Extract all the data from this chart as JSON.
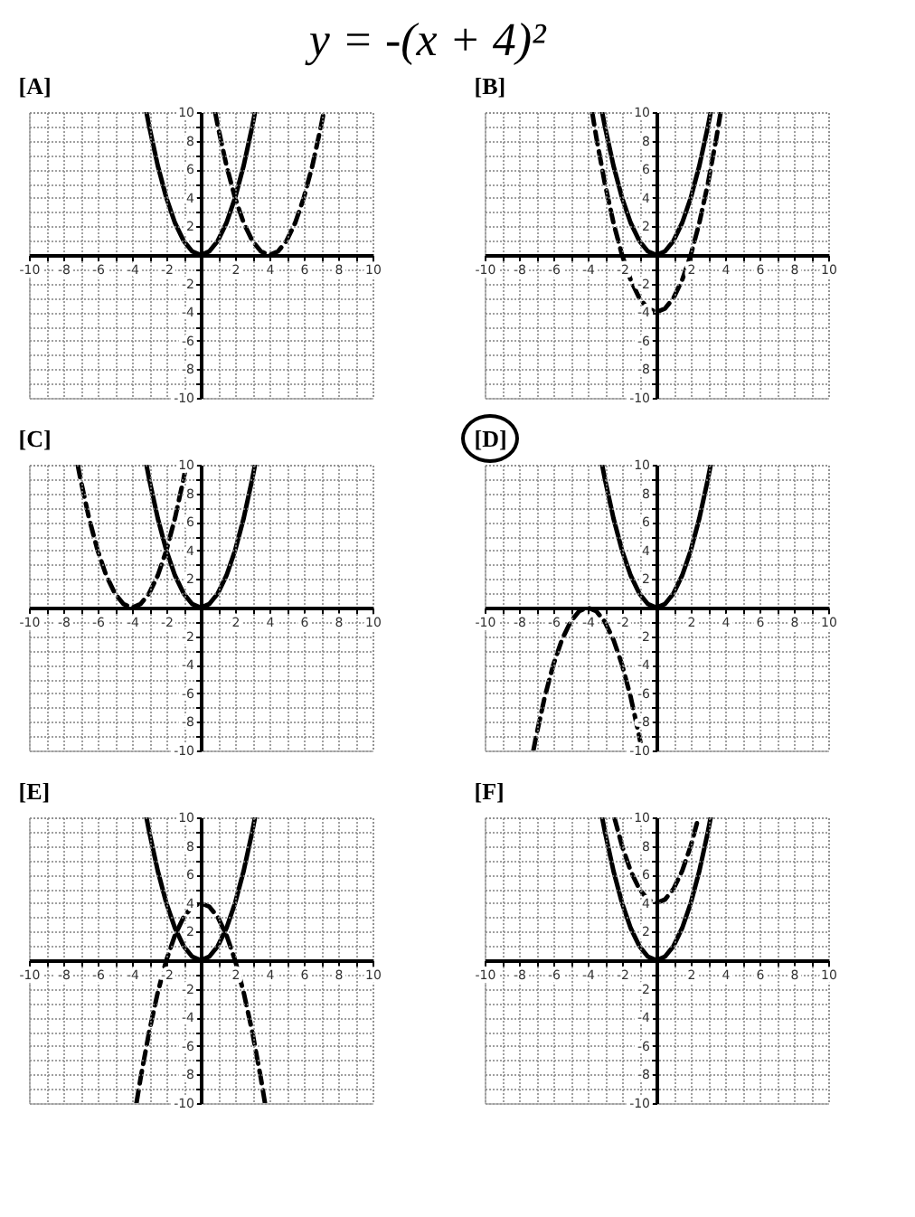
{
  "chart_data": [
    {
      "type": "other",
      "title": "y = -(x + 4)²"
    },
    {
      "type": "line",
      "title": "[A]",
      "xlim": [
        -10,
        10
      ],
      "ylim": [
        -10,
        10
      ],
      "grid": true,
      "xticks": [
        -10,
        {
          "value": -9,
          "label": null
        },
        -8,
        {
          "value": -7,
          "label": null
        },
        -6,
        {
          "value": -5,
          "label": null
        },
        -4,
        {
          "value": -3,
          "label": null
        },
        -2,
        {
          "value": -1,
          "label": null
        },
        {
          "value": 0,
          "label": null
        },
        {
          "value": 1,
          "label": null
        },
        2,
        {
          "value": 3,
          "label": null
        },
        4,
        {
          "value": 5,
          "label": null
        },
        6,
        {
          "value": 7,
          "label": null
        },
        8,
        {
          "value": 9,
          "label": null
        },
        10
      ],
      "yticks": [
        -10,
        {
          "value": -9,
          "label": null
        },
        -8,
        {
          "value": -7,
          "label": null
        },
        -6,
        {
          "value": -5,
          "label": null
        },
        -4,
        {
          "value": -3,
          "label": null
        },
        -2,
        {
          "value": -1,
          "label": null
        },
        {
          "value": 0,
          "label": null
        },
        {
          "value": 1,
          "label": null
        },
        2,
        {
          "value": 3,
          "label": null
        },
        4,
        {
          "value": 5,
          "label": null
        },
        6,
        {
          "value": 7,
          "label": null
        },
        8,
        {
          "value": 9,
          "label": null
        },
        10
      ],
      "series": [
        {
          "color": "#000000",
          "line_style": "solid",
          "x": [
            -3.16,
            -3,
            -2.5,
            -2,
            -1.5,
            -1,
            -0.5,
            0,
            0.5,
            1,
            1.5,
            2,
            2.5,
            3,
            3.16
          ],
          "values": [
            10,
            9,
            6.25,
            4,
            2.25,
            1,
            0.25,
            0,
            0.25,
            1,
            2.25,
            4,
            6.25,
            9,
            10
          ]
        },
        {
          "color": "#000000",
          "line_style": "dashed",
          "x": [
            0.84,
            1,
            1.5,
            2,
            2.5,
            3,
            3.5,
            4,
            4.5,
            5,
            5.5,
            6,
            6.5,
            7,
            7.16
          ],
          "values": [
            10,
            9,
            6.25,
            4,
            2.25,
            1,
            0.25,
            0,
            0.25,
            1,
            2.25,
            4,
            6.25,
            9,
            10
          ]
        }
      ]
    },
    {
      "type": "line",
      "title": "[B]",
      "xlim": [
        -10,
        10
      ],
      "ylim": [
        -10,
        10
      ],
      "grid": true,
      "xticks": [
        -10,
        {
          "value": -9,
          "label": null
        },
        -8,
        {
          "value": -7,
          "label": null
        },
        -6,
        {
          "value": -5,
          "label": null
        },
        -4,
        {
          "value": -3,
          "label": null
        },
        -2,
        {
          "value": -1,
          "label": null
        },
        {
          "value": 0,
          "label": null
        },
        {
          "value": 1,
          "label": null
        },
        2,
        {
          "value": 3,
          "label": null
        },
        4,
        {
          "value": 5,
          "label": null
        },
        6,
        {
          "value": 7,
          "label": null
        },
        8,
        {
          "value": 9,
          "label": null
        },
        10
      ],
      "yticks": [
        -10,
        {
          "value": -9,
          "label": null
        },
        -8,
        {
          "value": -7,
          "label": null
        },
        -6,
        {
          "value": -5,
          "label": null
        },
        -4,
        {
          "value": -3,
          "label": null
        },
        -2,
        {
          "value": -1,
          "label": null
        },
        {
          "value": 0,
          "label": null
        },
        {
          "value": 1,
          "label": null
        },
        2,
        {
          "value": 3,
          "label": null
        },
        4,
        {
          "value": 5,
          "label": null
        },
        6,
        {
          "value": 7,
          "label": null
        },
        8,
        {
          "value": 9,
          "label": null
        },
        10
      ],
      "series": [
        {
          "color": "#000000",
          "line_style": "solid",
          "x": [
            -3.16,
            -3,
            -2.5,
            -2,
            -1.5,
            -1,
            -0.5,
            0,
            0.5,
            1,
            1.5,
            2,
            2.5,
            3,
            3.16
          ],
          "values": [
            10,
            9,
            6.25,
            4,
            2.25,
            1,
            0.25,
            0,
            0.25,
            1,
            2.25,
            4,
            6.25,
            9,
            10
          ]
        },
        {
          "color": "#000000",
          "line_style": "dashed",
          "x": [
            -3.74,
            -3.5,
            -3,
            -2.5,
            -2,
            -1.5,
            -1,
            -0.5,
            0,
            0.5,
            1,
            1.5,
            2,
            2.5,
            3,
            3.5,
            3.74
          ],
          "values": [
            10,
            8.25,
            5,
            2.25,
            0,
            -1.75,
            -3,
            -3.75,
            -4,
            -3.75,
            -3,
            -1.75,
            0,
            2.25,
            5,
            8.25,
            10
          ]
        }
      ]
    },
    {
      "type": "line",
      "title": "[C]",
      "xlim": [
        -10,
        10
      ],
      "ylim": [
        -10,
        10
      ],
      "grid": true,
      "xticks": [
        -10,
        {
          "value": -9,
          "label": null
        },
        -8,
        {
          "value": -7,
          "label": null
        },
        -6,
        {
          "value": -5,
          "label": null
        },
        -4,
        {
          "value": -3,
          "label": null
        },
        -2,
        {
          "value": -1,
          "label": null
        },
        {
          "value": 0,
          "label": null
        },
        {
          "value": 1,
          "label": null
        },
        2,
        {
          "value": 3,
          "label": null
        },
        4,
        {
          "value": 5,
          "label": null
        },
        6,
        {
          "value": 7,
          "label": null
        },
        8,
        {
          "value": 9,
          "label": null
        },
        10
      ],
      "yticks": [
        -10,
        {
          "value": -9,
          "label": null
        },
        -8,
        {
          "value": -7,
          "label": null
        },
        -6,
        {
          "value": -5,
          "label": null
        },
        -4,
        {
          "value": -3,
          "label": null
        },
        -2,
        {
          "value": -1,
          "label": null
        },
        {
          "value": 0,
          "label": null
        },
        {
          "value": 1,
          "label": null
        },
        2,
        {
          "value": 3,
          "label": null
        },
        4,
        {
          "value": 5,
          "label": null
        },
        6,
        {
          "value": 7,
          "label": null
        },
        8,
        {
          "value": 9,
          "label": null
        },
        10
      ],
      "series": [
        {
          "color": "#000000",
          "line_style": "solid",
          "x": [
            -3.16,
            -3,
            -2.5,
            -2,
            -1.5,
            -1,
            -0.5,
            0,
            0.5,
            1,
            1.5,
            2,
            2.5,
            3,
            3.16
          ],
          "values": [
            10,
            9,
            6.25,
            4,
            2.25,
            1,
            0.25,
            0,
            0.25,
            1,
            2.25,
            4,
            6.25,
            9,
            10
          ]
        },
        {
          "color": "#000000",
          "line_style": "dashed",
          "x": [
            -7.16,
            -7,
            -6.5,
            -6,
            -5.5,
            -5,
            -4.5,
            -4,
            -3.5,
            -3,
            -2.5,
            -2,
            -1.5,
            -1,
            -0.84
          ],
          "values": [
            10,
            9,
            6.25,
            4,
            2.25,
            1,
            0.25,
            0,
            0.25,
            1,
            2.25,
            4,
            6.25,
            9,
            10
          ]
        }
      ]
    },
    {
      "type": "line",
      "title": "[D]",
      "xlim": [
        -10,
        10
      ],
      "ylim": [
        -10,
        10
      ],
      "grid": true,
      "xticks": [
        -10,
        {
          "value": -9,
          "label": null
        },
        -8,
        {
          "value": -7,
          "label": null
        },
        -6,
        {
          "value": -5,
          "label": null
        },
        -4,
        {
          "value": -3,
          "label": null
        },
        -2,
        {
          "value": -1,
          "label": null
        },
        {
          "value": 0,
          "label": null
        },
        {
          "value": 1,
          "label": null
        },
        2,
        {
          "value": 3,
          "label": null
        },
        4,
        {
          "value": 5,
          "label": null
        },
        6,
        {
          "value": 7,
          "label": null
        },
        8,
        {
          "value": 9,
          "label": null
        },
        10
      ],
      "yticks": [
        -10,
        {
          "value": -9,
          "label": null
        },
        -8,
        {
          "value": -7,
          "label": null
        },
        -6,
        {
          "value": -5,
          "label": null
        },
        -4,
        {
          "value": -3,
          "label": null
        },
        -2,
        {
          "value": -1,
          "label": null
        },
        {
          "value": 0,
          "label": null
        },
        {
          "value": 1,
          "label": null
        },
        2,
        {
          "value": 3,
          "label": null
        },
        4,
        {
          "value": 5,
          "label": null
        },
        6,
        {
          "value": 7,
          "label": null
        },
        8,
        {
          "value": 9,
          "label": null
        },
        10
      ],
      "series": [
        {
          "color": "#000000",
          "line_style": "solid",
          "x": [
            -3.16,
            -3,
            -2.5,
            -2,
            -1.5,
            -1,
            -0.5,
            0,
            0.5,
            1,
            1.5,
            2,
            2.5,
            3,
            3.16
          ],
          "values": [
            10,
            9,
            6.25,
            4,
            2.25,
            1,
            0.25,
            0,
            0.25,
            1,
            2.25,
            4,
            6.25,
            9,
            10
          ]
        },
        {
          "color": "#000000",
          "line_style": "dashed",
          "x": [
            -7.16,
            -7,
            -6.5,
            -6,
            -5.5,
            -5,
            -4.5,
            -4,
            -3.5,
            -3,
            -2.5,
            -2,
            -1.5,
            -1,
            -0.84
          ],
          "values": [
            -10,
            -9,
            -6.25,
            -4,
            -2.25,
            -1,
            -0.25,
            0,
            -0.25,
            -1,
            -2.25,
            -4,
            -6.25,
            -9,
            -10
          ]
        }
      ]
    },
    {
      "type": "line",
      "title": "[E]",
      "xlim": [
        -10,
        10
      ],
      "ylim": [
        -10,
        10
      ],
      "grid": true,
      "xticks": [
        -10,
        {
          "value": -9,
          "label": null
        },
        -8,
        {
          "value": -7,
          "label": null
        },
        -6,
        {
          "value": -5,
          "label": null
        },
        -4,
        {
          "value": -3,
          "label": null
        },
        -2,
        {
          "value": -1,
          "label": null
        },
        {
          "value": 0,
          "label": null
        },
        {
          "value": 1,
          "label": null
        },
        2,
        {
          "value": 3,
          "label": null
        },
        4,
        {
          "value": 5,
          "label": null
        },
        6,
        {
          "value": 7,
          "label": null
        },
        8,
        {
          "value": 9,
          "label": null
        },
        10
      ],
      "yticks": [
        -10,
        {
          "value": -9,
          "label": null
        },
        -8,
        {
          "value": -7,
          "label": null
        },
        -6,
        {
          "value": -5,
          "label": null
        },
        -4,
        {
          "value": -3,
          "label": null
        },
        -2,
        {
          "value": -1,
          "label": null
        },
        {
          "value": 0,
          "label": null
        },
        {
          "value": 1,
          "label": null
        },
        2,
        {
          "value": 3,
          "label": null
        },
        4,
        {
          "value": 5,
          "label": null
        },
        6,
        {
          "value": 7,
          "label": null
        },
        8,
        {
          "value": 9,
          "label": null
        },
        10
      ],
      "series": [
        {
          "color": "#000000",
          "line_style": "solid",
          "x": [
            -3.16,
            -3,
            -2.5,
            -2,
            -1.5,
            -1,
            -0.5,
            0,
            0.5,
            1,
            1.5,
            2,
            2.5,
            3,
            3.16
          ],
          "values": [
            10,
            9,
            6.25,
            4,
            2.25,
            1,
            0.25,
            0,
            0.25,
            1,
            2.25,
            4,
            6.25,
            9,
            10
          ]
        },
        {
          "color": "#000000",
          "line_style": "dashed",
          "x": [
            -3.74,
            -3.5,
            -3,
            -2.5,
            -2,
            -1.5,
            -1,
            -0.5,
            0,
            0.5,
            1,
            1.5,
            2,
            2.5,
            3,
            3.5,
            3.74
          ],
          "values": [
            -10,
            -8.25,
            -5,
            -2.25,
            0,
            1.75,
            3,
            3.75,
            4,
            3.75,
            3,
            1.75,
            0,
            -2.25,
            -5,
            -8.25,
            -10
          ]
        }
      ]
    },
    {
      "type": "line",
      "title": "[F]",
      "xlim": [
        -10,
        10
      ],
      "ylim": [
        -10,
        10
      ],
      "grid": true,
      "xticks": [
        -10,
        {
          "value": -9,
          "label": null
        },
        -8,
        {
          "value": -7,
          "label": null
        },
        -6,
        {
          "value": -5,
          "label": null
        },
        -4,
        {
          "value": -3,
          "label": null
        },
        -2,
        {
          "value": -1,
          "label": null
        },
        {
          "value": 0,
          "label": null
        },
        {
          "value": 1,
          "label": null
        },
        2,
        {
          "value": 3,
          "label": null
        },
        4,
        {
          "value": 5,
          "label": null
        },
        6,
        {
          "value": 7,
          "label": null
        },
        8,
        {
          "value": 9,
          "label": null
        },
        10
      ],
      "yticks": [
        -10,
        {
          "value": -9,
          "label": null
        },
        -8,
        {
          "value": -7,
          "label": null
        },
        -6,
        {
          "value": -5,
          "label": null
        },
        -4,
        {
          "value": -3,
          "label": null
        },
        -2,
        {
          "value": -1,
          "label": null
        },
        {
          "value": 0,
          "label": null
        },
        {
          "value": 1,
          "label": null
        },
        2,
        {
          "value": 3,
          "label": null
        },
        4,
        {
          "value": 5,
          "label": null
        },
        6,
        {
          "value": 7,
          "label": null
        },
        8,
        {
          "value": 9,
          "label": null
        },
        10
      ],
      "series": [
        {
          "color": "#000000",
          "line_style": "solid",
          "x": [
            -3.16,
            -3,
            -2.5,
            -2,
            -1.5,
            -1,
            -0.5,
            0,
            0.5,
            1,
            1.5,
            2,
            2.5,
            3,
            3.16
          ],
          "values": [
            10,
            9,
            6.25,
            4,
            2.25,
            1,
            0.25,
            0,
            0.25,
            1,
            2.25,
            4,
            6.25,
            9,
            10
          ]
        },
        {
          "color": "#000000",
          "line_style": "dashed",
          "x": [
            -2.45,
            -2,
            -1.5,
            -1,
            -0.5,
            0,
            0.5,
            1,
            1.5,
            2,
            2.45
          ],
          "values": [
            10,
            8,
            6.25,
            5,
            4.25,
            4,
            4.25,
            5,
            6.25,
            8,
            10
          ]
        }
      ]
    }
  ]
}
